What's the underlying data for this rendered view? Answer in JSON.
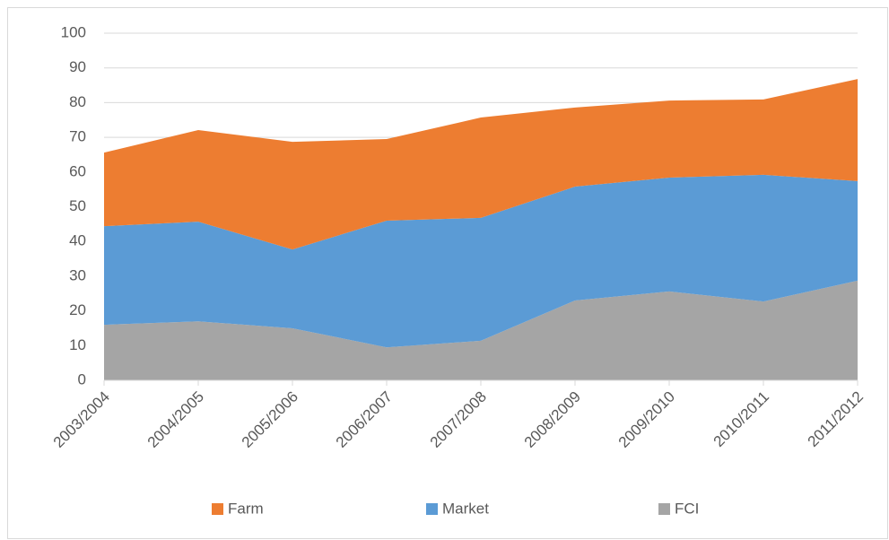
{
  "chart_data": {
    "type": "stacked_area",
    "categories": [
      "2003/2004",
      "2004/2005",
      "2005/2006",
      "2006/2007",
      "2007/2008",
      "2008/2009",
      "2009/2010",
      "2010/2011",
      "2011/2012"
    ],
    "series": [
      {
        "name": "Farm",
        "color": "#ED7D31",
        "values": [
          21.2,
          26.4,
          31,
          23.5,
          28.9,
          22.8,
          22.2,
          21.7,
          29.4
        ]
      },
      {
        "name": "Market",
        "color": "#5B9BD5",
        "values": [
          28.4,
          28.7,
          22.7,
          36.5,
          35.4,
          32.8,
          32.8,
          36.5,
          28.7
        ]
      },
      {
        "name": "FCI",
        "color": "#A5A5A5",
        "values": [
          16,
          17,
          15,
          9.5,
          11.4,
          23,
          25.6,
          22.7,
          28.7
        ]
      }
    ],
    "ylim": [
      0,
      100
    ],
    "yticks": [
      0,
      10,
      20,
      30,
      40,
      50,
      60,
      70,
      80,
      90,
      100
    ],
    "grid": true,
    "legend": "bottom"
  }
}
